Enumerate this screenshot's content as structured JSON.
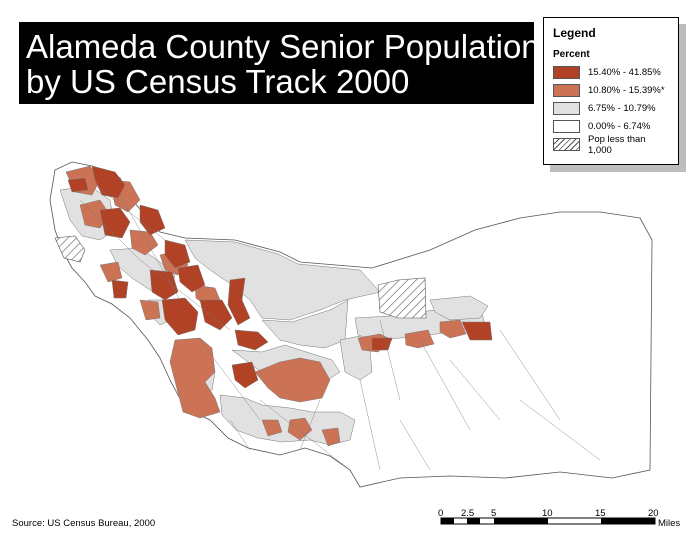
{
  "title": {
    "line1": "Alameda County Senior Population",
    "line2": "by US Census Track 2000"
  },
  "legend": {
    "title": "Legend",
    "subtitle": "Percent",
    "items": [
      {
        "label": "15.40% - 41.85%",
        "color": "#b24226"
      },
      {
        "label": "10.80% - 15.39%*",
        "color": "#cd7355"
      },
      {
        "label": "6.75% - 10.79%",
        "color": "#e1e1e1"
      },
      {
        "label": "0.00% - 6.74%",
        "color": "#ffffff"
      },
      {
        "label": "Pop less than 1,000",
        "color": "hatch"
      }
    ]
  },
  "scale_bar": {
    "ticks": [
      "0",
      "2.5",
      "5",
      "10",
      "15",
      "20"
    ],
    "unit": "Miles"
  },
  "source": "Source: US Census Bureau, 2000"
}
